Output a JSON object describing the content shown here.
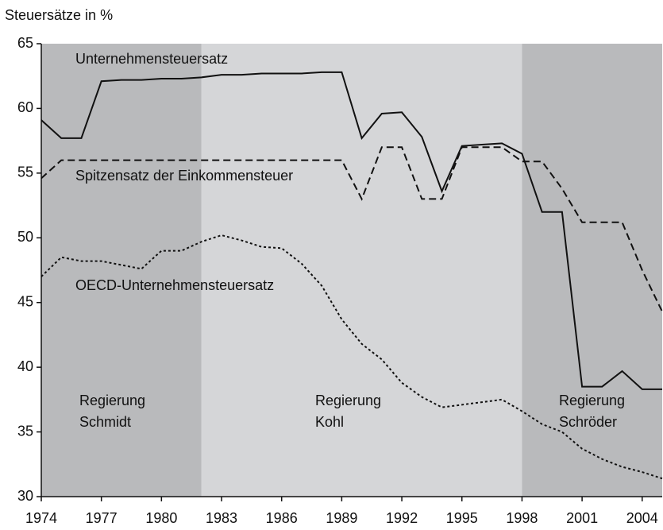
{
  "chart_data": {
    "type": "line",
    "y_axis_label": "Steuersätze in %",
    "x": [
      1974,
      1975,
      1976,
      1977,
      1978,
      1979,
      1980,
      1981,
      1982,
      1983,
      1984,
      1985,
      1986,
      1987,
      1988,
      1989,
      1990,
      1991,
      1992,
      1993,
      1994,
      1995,
      1996,
      1997,
      1998,
      1999,
      2000,
      2001,
      2002,
      2003,
      2004,
      2005
    ],
    "series": [
      {
        "name": "Unternehmensteuersatz",
        "color": "#111111",
        "line_style": "solid",
        "values": [
          59.1,
          57.7,
          57.7,
          62.1,
          62.2,
          62.2,
          62.3,
          62.3,
          62.4,
          62.6,
          62.6,
          62.7,
          62.7,
          62.7,
          62.8,
          62.8,
          57.7,
          59.6,
          59.7,
          57.8,
          53.6,
          57.1,
          57.2,
          57.3,
          56.5,
          52.0,
          52.0,
          38.5,
          38.5,
          39.7,
          38.3,
          38.3
        ]
      },
      {
        "name": "Spitzensatz der Einkommensteuer",
        "color": "#111111",
        "line_style": "dashed",
        "values": [
          54.6,
          56,
          56,
          56,
          56,
          56,
          56,
          56,
          56,
          56,
          56,
          56,
          56,
          56,
          56,
          56,
          53,
          57,
          57,
          53,
          53,
          57,
          57,
          57,
          55.9,
          55.9,
          53.8,
          51.2,
          51.2,
          51.2,
          47.5,
          44.3
        ]
      },
      {
        "name": "OECD-Unternehmensteuersatz",
        "color": "#111111",
        "line_style": "dotted",
        "values": [
          47.0,
          48.5,
          48.2,
          48.2,
          47.9,
          47.6,
          49.0,
          49.0,
          49.7,
          50.2,
          49.8,
          49.3,
          49.2,
          48.0,
          46.3,
          43.7,
          41.8,
          40.6,
          38.8,
          37.7,
          36.9,
          37.1,
          37.3,
          37.5,
          36.6,
          35.6,
          35.0,
          33.7,
          32.9,
          32.3,
          31.9,
          31.4
        ]
      }
    ],
    "regions": [
      {
        "start": 1974,
        "end": 1982,
        "color": "#b9babc",
        "label": [
          "Regierung",
          "Schmidt"
        ]
      },
      {
        "start": 1982,
        "end": 1998,
        "color": "#d5d6d8",
        "label": [
          "Regierung",
          "Kohl"
        ]
      },
      {
        "start": 1998,
        "end": 2005,
        "color": "#b9babc",
        "label": [
          "Regierung",
          "Schröder"
        ]
      }
    ],
    "xlim": [
      1974,
      2005
    ],
    "xticks": [
      1974,
      1977,
      1980,
      1983,
      1986,
      1989,
      1992,
      1995,
      1998,
      2001,
      2004
    ],
    "ylim": [
      30,
      65
    ],
    "yticks": [
      30,
      35,
      40,
      45,
      50,
      55,
      60,
      65
    ]
  }
}
